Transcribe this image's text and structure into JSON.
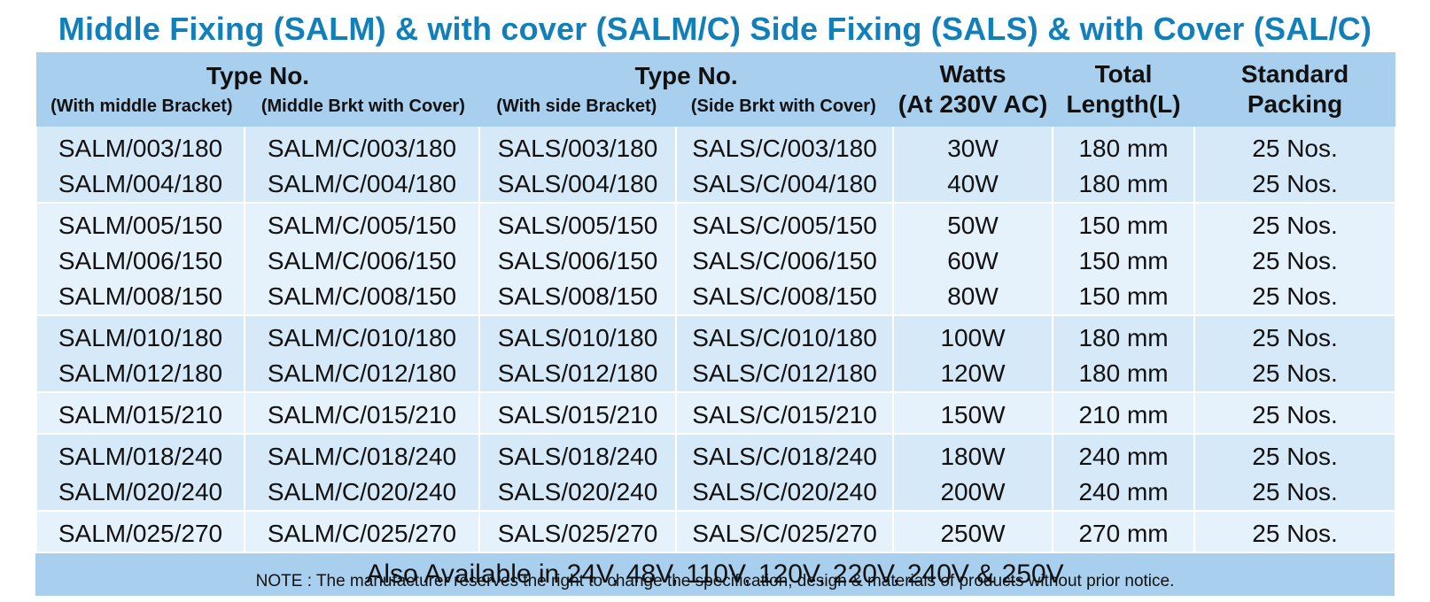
{
  "title": "Middle Fixing (SALM) & with cover (SALM/C) Side Fixing (SALS) & with Cover (SAL/C)",
  "header": {
    "type_no_1": "Type No.",
    "type_no_2": "Type No.",
    "sub_middle_bracket": "(With middle Bracket)",
    "sub_middle_cover": "(Middle Brkt with Cover)",
    "sub_side_bracket": "(With side Bracket)",
    "sub_side_cover": "(Side Brkt with Cover)",
    "watts_line1": "Watts",
    "watts_line2": "(At 230V AC)",
    "length_line1": "Total",
    "length_line2": "Length(L)",
    "packing_line1": "Standard",
    "packing_line2": "Packing"
  },
  "groups": [
    {
      "rows": [
        [
          "SALM/003/180",
          "SALM/C/003/180",
          "SALS/003/180",
          "SALS/C/003/180",
          "30W",
          "180 mm",
          "25 Nos."
        ],
        [
          "SALM/004/180",
          "SALM/C/004/180",
          "SALS/004/180",
          "SALS/C/004/180",
          "40W",
          "180 mm",
          "25 Nos."
        ]
      ]
    },
    {
      "rows": [
        [
          "SALM/005/150",
          "SALM/C/005/150",
          "SALS/005/150",
          "SALS/C/005/150",
          "50W",
          "150 mm",
          "25 Nos."
        ],
        [
          "SALM/006/150",
          "SALM/C/006/150",
          "SALS/006/150",
          "SALS/C/006/150",
          "60W",
          "150 mm",
          "25 Nos."
        ],
        [
          "SALM/008/150",
          "SALM/C/008/150",
          "SALS/008/150",
          "SALS/C/008/150",
          "80W",
          "150 mm",
          "25 Nos."
        ]
      ]
    },
    {
      "rows": [
        [
          "SALM/010/180",
          "SALM/C/010/180",
          "SALS/010/180",
          "SALS/C/010/180",
          "100W",
          "180 mm",
          "25 Nos."
        ],
        [
          "SALM/012/180",
          "SALM/C/012/180",
          "SALS/012/180",
          "SALS/C/012/180",
          "120W",
          "180 mm",
          "25 Nos."
        ]
      ]
    },
    {
      "rows": [
        [
          "SALM/015/210",
          "SALM/C/015/210",
          "SALS/015/210",
          "SALS/C/015/210",
          "150W",
          "210 mm",
          "25 Nos."
        ]
      ]
    },
    {
      "rows": [
        [
          "SALM/018/240",
          "SALM/C/018/240",
          "SALS/018/240",
          "SALS/C/018/240",
          "180W",
          "240 mm",
          "25 Nos."
        ],
        [
          "SALM/020/240",
          "SALM/C/020/240",
          "SALS/020/240",
          "SALS/C/020/240",
          "200W",
          "240 mm",
          "25 Nos."
        ]
      ]
    },
    {
      "rows": [
        [
          "SALM/025/270",
          "SALM/C/025/270",
          "SALS/025/270",
          "SALS/C/025/270",
          "250W",
          "270 mm",
          "25 Nos."
        ]
      ]
    }
  ],
  "footer": "Also Available in 24V, 48V, 110V, 120V, 220V, 240V & 250V",
  "note": "NOTE : The manufacturer reserves the right to change the specification, design & materials of products without prior notice.",
  "colors": {
    "title": "#1180ba",
    "header_bg": "#a9cfee",
    "row_dark": "#d6e9f8",
    "row_light": "#e6f2fb"
  }
}
